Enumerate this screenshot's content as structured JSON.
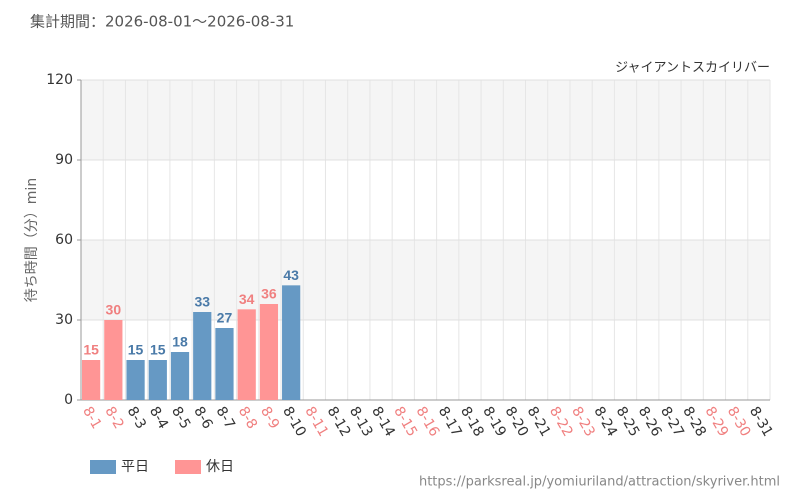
{
  "chart_data": {
    "type": "bar",
    "title": "集計期間：2026-08-01～2026-08-31",
    "subtitle": "ジャイアントスカイリバー",
    "y_label": "待ち時間（分）min",
    "source": "https://parksreal.jp/yomiuriland/attraction/skyriver.html",
    "categories": [
      "8-1",
      "8-2",
      "8-3",
      "8-4",
      "8-5",
      "8-6",
      "8-7",
      "8-8",
      "8-9",
      "8-10",
      "8-11",
      "8-12",
      "8-13",
      "8-14",
      "8-15",
      "8-16",
      "8-17",
      "8-18",
      "8-19",
      "8-20",
      "8-21",
      "8-22",
      "8-23",
      "8-24",
      "8-25",
      "8-26",
      "8-27",
      "8-28",
      "8-29",
      "8-30",
      "8-31"
    ],
    "category_label_colors": [
      "#f08080",
      "#f08080",
      "#333333",
      "#333333",
      "#333333",
      "#333333",
      "#333333",
      "#f08080",
      "#f08080",
      "#333333",
      "#f08080",
      "#333333",
      "#333333",
      "#333333",
      "#f08080",
      "#f08080",
      "#333333",
      "#333333",
      "#333333",
      "#333333",
      "#333333",
      "#f08080",
      "#f08080",
      "#333333",
      "#333333",
      "#333333",
      "#333333",
      "#333333",
      "#f08080",
      "#f08080",
      "#333333"
    ],
    "series": [
      {
        "name": "平日",
        "color": "#6699c4",
        "label_color": "#4a7aa8",
        "values": [
          null,
          null,
          15,
          15,
          18,
          33,
          27,
          null,
          null,
          43,
          null,
          null,
          null,
          null,
          null,
          null,
          null,
          null,
          null,
          null,
          null,
          null,
          null,
          null,
          null,
          null,
          null,
          null,
          null,
          null,
          null
        ]
      },
      {
        "name": "休日",
        "color": "#ff9595",
        "label_color": "#f08080",
        "values": [
          15,
          30,
          null,
          null,
          null,
          null,
          null,
          34,
          36,
          null,
          null,
          null,
          null,
          null,
          null,
          null,
          null,
          null,
          null,
          null,
          null,
          null,
          null,
          null,
          null,
          null,
          null,
          null,
          null,
          null,
          null
        ]
      }
    ],
    "ylim": [
      0,
      120
    ],
    "yticks": [
      0,
      30,
      60,
      90,
      120
    ],
    "grid": true,
    "legend": "bottom-left"
  }
}
